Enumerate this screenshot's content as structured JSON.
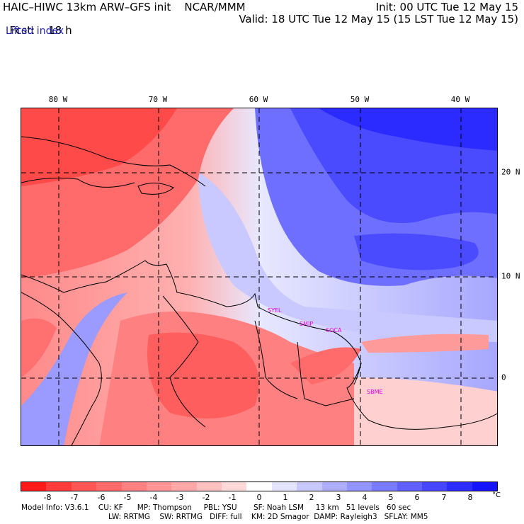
{
  "header": {
    "title_left": "HAIC–HIWC 13km ARW–GFS init    NCAR/MMM",
    "fcst_label": "Fcst:",
    "fcst_value": "18 h",
    "init": "Init: 00 UTC Tue 12 May 15",
    "valid": "Valid: 18 UTC Tue 12 May 15 (15 LST Tue 12 May 15)",
    "field": "Lifted index"
  },
  "map": {
    "longitude_labels": [
      "80 W",
      "70 W",
      "60 W",
      "50 W",
      "40 W"
    ],
    "latitude_labels": [
      "20 N",
      "10 N",
      "0"
    ],
    "station_labels": [
      "SYEL",
      "SMJP",
      "SOCA",
      "SBME"
    ]
  },
  "colorbar": {
    "ticks": [
      "-8",
      "-7",
      "-6",
      "-5",
      "-4",
      "-3",
      "-2",
      "-1",
      "0",
      "1",
      "2",
      "3",
      "4",
      "5",
      "6",
      "7",
      "8"
    ],
    "unit": "°C",
    "colors": [
      "#ff1a1a",
      "#ff3b3b",
      "#ff5555",
      "#ff6a6a",
      "#ff8080",
      "#ff9494",
      "#ffa8a8",
      "#ffc0c0",
      "#ffd8d8",
      "#ffffff",
      "#e4e4ff",
      "#c8c8ff",
      "#aeaeff",
      "#9494ff",
      "#7a7aff",
      "#6060ff",
      "#4646ff",
      "#2c2cff",
      "#1414ff"
    ]
  },
  "model_info": {
    "line1": "Model Info: V3.6.1    CU: KF      MP: Thompson     PBL: YSU       SF: Noah LSM     13 km   51 levels   60 sec",
    "line2": "LW: RRTMG    SW: RRTMG   DIFF: full    KM: 2D Smagor  DAMP: Rayleigh3   SFLAY: MM5"
  }
}
